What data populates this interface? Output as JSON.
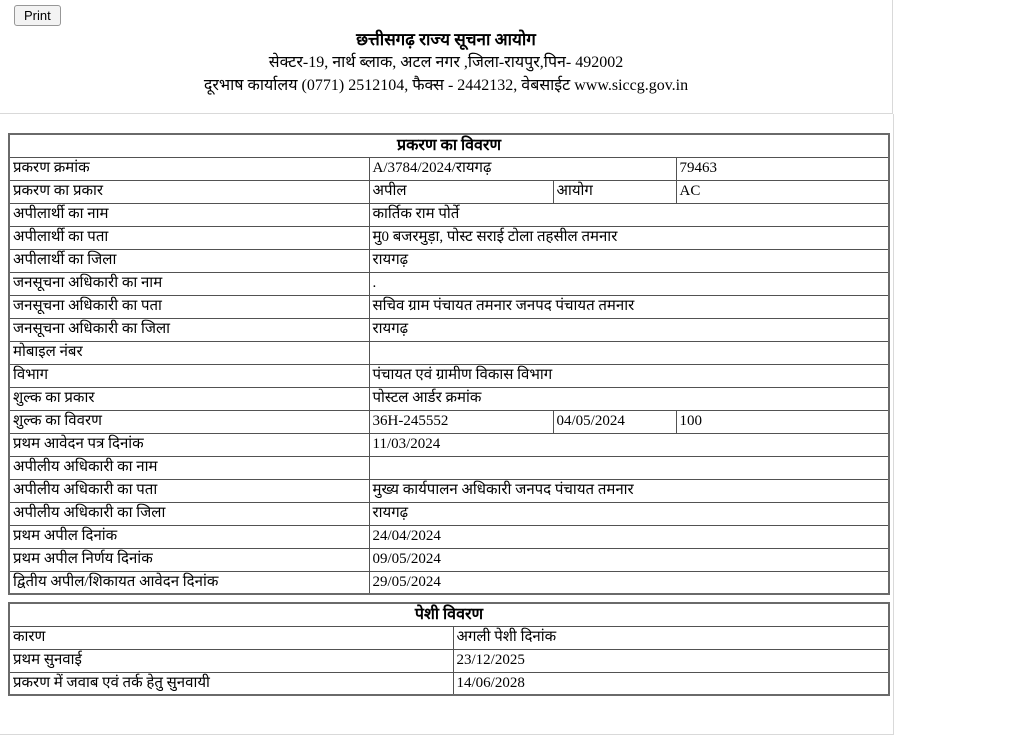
{
  "page": {
    "background": "#ffffff",
    "frame_border_color": "#d9d9d9",
    "table_border_color": "#525252"
  },
  "toolbar": {
    "print_label": "Print"
  },
  "header": {
    "title": "छत्तीसगढ़ राज्य सूचना आयोग",
    "address_line1": "सेक्टर-19, नार्थ ब्लाक, अटल नगर ,जिला-रायपुर,पिन- 492002",
    "address_line2": "दूरभाष कार्यालय (0771) 2512104, फैक्स - 2442132, वेबसाईट www.siccg.gov.in"
  },
  "case_table": {
    "title": "प्रकरण का विवरण",
    "rows": [
      {
        "label": "प्रकरण क्रमांक",
        "cells": [
          {
            "text": "A/3784/2024/रायगढ़",
            "span": 2
          },
          {
            "text": "79463",
            "span": 1
          }
        ]
      },
      {
        "label": "प्रकरण का प्रकार",
        "cells": [
          {
            "text": "अपील",
            "span": 1
          },
          {
            "text": "आयोग",
            "span": 1
          },
          {
            "text": "AC",
            "span": 1
          }
        ]
      },
      {
        "label": "अपीलार्थी का नाम",
        "cells": [
          {
            "text": "कार्तिक राम पोर्ते",
            "span": 3
          }
        ]
      },
      {
        "label": "अपीलार्थी का पता",
        "cells": [
          {
            "text": "मु0 बजरमुड़ा, पोस्ट सराई टोला तहसील तमनार",
            "span": 3
          }
        ]
      },
      {
        "label": "अपीलार्थी का जिला",
        "cells": [
          {
            "text": "रायगढ़",
            "span": 3
          }
        ]
      },
      {
        "label": "जनसूचना अधिकारी का नाम",
        "cells": [
          {
            "text": ".",
            "span": 3
          }
        ]
      },
      {
        "label": "जनसूचना अधिकारी का पता",
        "cells": [
          {
            "text": "सचिव ग्राम पंचायत तमनार जनपद पंचायत तमनार",
            "span": 3
          }
        ]
      },
      {
        "label": "जनसूचना अधिकारी का जिला",
        "cells": [
          {
            "text": "रायगढ़",
            "span": 3
          }
        ]
      },
      {
        "label": "मोबाइल नंबर",
        "cells": [
          {
            "text": "",
            "span": 3
          }
        ]
      },
      {
        "label": "विभाग",
        "cells": [
          {
            "text": "पंचायत एवं ग्रामीण विकास विभाग",
            "span": 3
          }
        ]
      },
      {
        "label": "शुल्क का प्रकार",
        "cells": [
          {
            "text": "पोस्टल आर्डर क्रमांक",
            "span": 3
          }
        ]
      },
      {
        "label": "शुल्क का विवरण",
        "cells": [
          {
            "text": "36H-245552",
            "span": 1
          },
          {
            "text": "04/05/2024",
            "span": 1
          },
          {
            "text": "100",
            "span": 1
          }
        ]
      },
      {
        "label": "प्रथम आवेदन पत्र दिनांक",
        "cells": [
          {
            "text": "11/03/2024",
            "span": 3
          }
        ]
      },
      {
        "label": "अपीलीय अधिकारी का नाम",
        "cells": [
          {
            "text": "",
            "span": 3
          }
        ]
      },
      {
        "label": "अपीलीय अधिकारी का पता",
        "cells": [
          {
            "text": "मुख्य कार्यपालन अधिकारी जनपद पंचायत तमनार",
            "span": 3
          }
        ]
      },
      {
        "label": "अपीलीय अधिकारी का जिला",
        "cells": [
          {
            "text": "रायगढ़",
            "span": 3
          }
        ]
      },
      {
        "label": "प्रथम अपील दिनांक",
        "cells": [
          {
            "text": "24/04/2024",
            "span": 3
          }
        ]
      },
      {
        "label": "प्रथम अपील निर्णय दिनांक",
        "cells": [
          {
            "text": "09/05/2024",
            "span": 3
          }
        ]
      },
      {
        "label": "द्वितीय अपील/शिकायत आवेदन दिनांक",
        "cells": [
          {
            "text": "29/05/2024",
            "span": 3
          }
        ]
      }
    ]
  },
  "hearing_table": {
    "title": "पेशी विवरण",
    "rows": [
      {
        "label": "कारण",
        "value": "अगली पेशी दिनांक"
      },
      {
        "label": "प्रथम सुनवाई",
        "value": "23/12/2025"
      },
      {
        "label": "प्रकरण में जवाब एवं तर्क हेतु सुनवायी",
        "value": "14/06/2028"
      }
    ]
  }
}
